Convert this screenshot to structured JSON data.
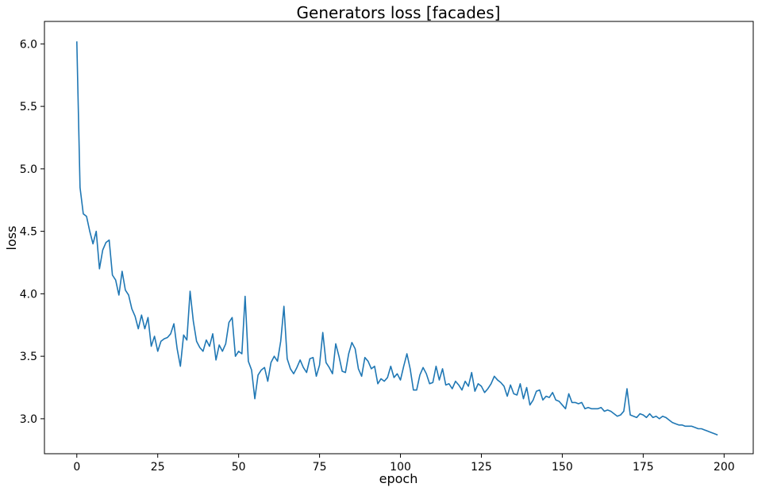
{
  "chart_data": {
    "type": "line",
    "title": "Generators loss [facades]",
    "xlabel": "epoch",
    "ylabel": "loss",
    "xlim": [
      -10,
      209
    ],
    "ylim": [
      2.72,
      6.18
    ],
    "x_ticks": [
      0,
      25,
      50,
      75,
      100,
      125,
      150,
      175,
      200
    ],
    "y_ticks": [
      3.0,
      3.5,
      4.0,
      4.5,
      5.0,
      5.5,
      6.0
    ],
    "y_tick_labels": [
      "3.0",
      "3.5",
      "4.0",
      "4.5",
      "5.0",
      "5.5",
      "6.0"
    ],
    "grid": false,
    "series": [
      {
        "color": "#1f77b4",
        "x_start": 0,
        "x_step": 1,
        "values": [
          6.02,
          4.85,
          4.64,
          4.62,
          4.5,
          4.4,
          4.5,
          4.2,
          4.35,
          4.41,
          4.43,
          4.15,
          4.11,
          3.99,
          4.18,
          4.03,
          3.99,
          3.88,
          3.82,
          3.72,
          3.83,
          3.72,
          3.81,
          3.58,
          3.66,
          3.54,
          3.62,
          3.64,
          3.65,
          3.68,
          3.76,
          3.56,
          3.42,
          3.67,
          3.63,
          4.02,
          3.78,
          3.62,
          3.57,
          3.54,
          3.63,
          3.58,
          3.68,
          3.47,
          3.59,
          3.54,
          3.6,
          3.77,
          3.81,
          3.5,
          3.54,
          3.52,
          3.98,
          3.46,
          3.39,
          3.16,
          3.35,
          3.39,
          3.41,
          3.3,
          3.45,
          3.5,
          3.46,
          3.62,
          3.9,
          3.48,
          3.4,
          3.36,
          3.41,
          3.47,
          3.41,
          3.37,
          3.48,
          3.49,
          3.34,
          3.43,
          3.69,
          3.45,
          3.41,
          3.36,
          3.6,
          3.5,
          3.38,
          3.37,
          3.52,
          3.61,
          3.56,
          3.4,
          3.34,
          3.49,
          3.46,
          3.4,
          3.42,
          3.28,
          3.32,
          3.3,
          3.33,
          3.42,
          3.33,
          3.36,
          3.31,
          3.42,
          3.52,
          3.4,
          3.23,
          3.23,
          3.35,
          3.41,
          3.36,
          3.28,
          3.29,
          3.42,
          3.31,
          3.4,
          3.27,
          3.28,
          3.24,
          3.3,
          3.27,
          3.23,
          3.3,
          3.26,
          3.37,
          3.22,
          3.28,
          3.26,
          3.21,
          3.24,
          3.28,
          3.34,
          3.31,
          3.29,
          3.26,
          3.18,
          3.27,
          3.2,
          3.19,
          3.28,
          3.16,
          3.25,
          3.11,
          3.15,
          3.22,
          3.23,
          3.15,
          3.18,
          3.17,
          3.21,
          3.15,
          3.14,
          3.11,
          3.08,
          3.2,
          3.13,
          3.13,
          3.12,
          3.13,
          3.08,
          3.09,
          3.08,
          3.08,
          3.08,
          3.09,
          3.06,
          3.07,
          3.06,
          3.04,
          3.02,
          3.03,
          3.06,
          3.24,
          3.03,
          3.02,
          3.01,
          3.04,
          3.03,
          3.01,
          3.04,
          3.01,
          3.02,
          3.0,
          3.02,
          3.01,
          2.99,
          2.97,
          2.96,
          2.95,
          2.95,
          2.94,
          2.94,
          2.94,
          2.93,
          2.92,
          2.92,
          2.91,
          2.9,
          2.89,
          2.88,
          2.87
        ]
      }
    ]
  }
}
